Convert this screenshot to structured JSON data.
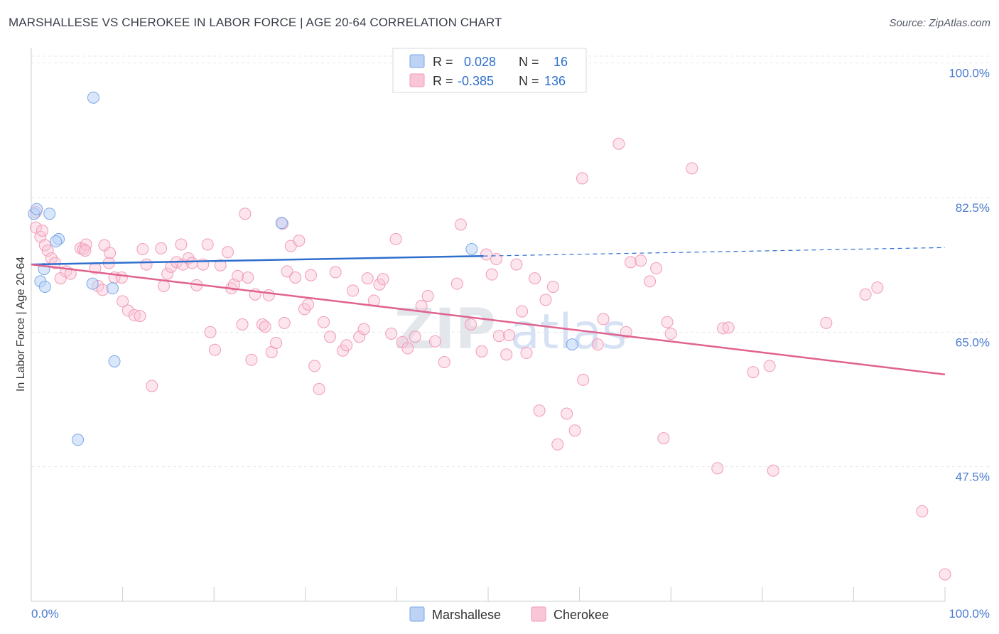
{
  "header": {
    "title": "MARSHALLESE VS CHEROKEE IN LABOR FORCE | AGE 20-64 CORRELATION CHART",
    "source": "Source: ZipAtlas.com"
  },
  "watermark": {
    "zip": "ZIP",
    "atlas": "atlas"
  },
  "legend": {
    "rows": [
      {
        "r_label": "R =",
        "r_value": "0.028",
        "n_label": "N =",
        "n_value": "16"
      },
      {
        "r_label": "R =",
        "r_value": "-0.385",
        "n_label": "N =",
        "n_value": "136"
      }
    ]
  },
  "bottom_legend": {
    "items": [
      "Marshallese",
      "Cherokee"
    ]
  },
  "chart_data": {
    "type": "scatter",
    "title": "MARSHALLESE VS CHEROKEE IN LABOR FORCE | AGE 20-64 CORRELATION CHART",
    "xlabel": "",
    "ylabel": "In Labor Force | Age 20-64",
    "xlim": [
      0,
      100
    ],
    "ylim": [
      30,
      102
    ],
    "x_tick_labels": [
      "0.0%",
      "100.0%"
    ],
    "y_ticks": [
      47.5,
      65.0,
      82.5,
      100.0
    ],
    "y_tick_labels": [
      "47.5%",
      "65.0%",
      "82.5%",
      "100.0%"
    ],
    "grid": true,
    "colors": {
      "marshallese": "#7aa7e8",
      "cherokee": "#f19ab8",
      "marshallese_line": "#2e6fce",
      "cherokee_line": "#e0628f",
      "accent_text": "#4a7bd0"
    },
    "series": [
      {
        "name": "Marshallese",
        "trend": {
          "x": [
            0,
            49.5
          ],
          "y": [
            73.8,
            74.9
          ],
          "dashed_to": [
            100,
            76.0
          ]
        },
        "points": [
          [
            0.3,
            80.4
          ],
          [
            0.6,
            81.0
          ],
          [
            2.0,
            80.4
          ],
          [
            1.0,
            71.6
          ],
          [
            1.5,
            70.9
          ],
          [
            1.4,
            73.2
          ],
          [
            3.0,
            77.1
          ],
          [
            2.7,
            76.8
          ],
          [
            6.8,
            95.5
          ],
          [
            6.7,
            71.3
          ],
          [
            8.9,
            70.7
          ],
          [
            9.1,
            61.2
          ],
          [
            5.1,
            51.0
          ],
          [
            27.4,
            79.2
          ],
          [
            48.2,
            75.8
          ],
          [
            59.2,
            63.4
          ]
        ]
      },
      {
        "name": "Cherokee",
        "trend": {
          "x": [
            0,
            100
          ],
          "y": [
            73.8,
            59.5
          ]
        },
        "points": [
          [
            0.5,
            78.6
          ],
          [
            1.0,
            77.4
          ],
          [
            1.5,
            76.3
          ],
          [
            1.8,
            75.6
          ],
          [
            2.2,
            74.6
          ],
          [
            2.6,
            74.0
          ],
          [
            3.2,
            72.0
          ],
          [
            3.8,
            72.9
          ],
          [
            4.3,
            72.6
          ],
          [
            5.4,
            75.9
          ],
          [
            5.7,
            75.8
          ],
          [
            6.0,
            76.4
          ],
          [
            7.0,
            73.3
          ],
          [
            7.3,
            71.0
          ],
          [
            7.8,
            70.5
          ],
          [
            8.0,
            76.3
          ],
          [
            8.5,
            74.0
          ],
          [
            8.6,
            75.3
          ],
          [
            9.1,
            72.1
          ],
          [
            9.9,
            72.1
          ],
          [
            10.0,
            69.0
          ],
          [
            10.6,
            67.8
          ],
          [
            11.3,
            67.2
          ],
          [
            11.9,
            67.1
          ],
          [
            12.2,
            75.8
          ],
          [
            12.6,
            73.8
          ],
          [
            13.2,
            58.0
          ],
          [
            14.2,
            75.9
          ],
          [
            14.5,
            71.0
          ],
          [
            14.9,
            72.6
          ],
          [
            15.3,
            73.5
          ],
          [
            15.9,
            74.1
          ],
          [
            16.4,
            76.4
          ],
          [
            16.6,
            73.8
          ],
          [
            17.2,
            74.6
          ],
          [
            17.6,
            74.0
          ],
          [
            18.1,
            71.1
          ],
          [
            18.8,
            73.8
          ],
          [
            19.3,
            76.4
          ],
          [
            19.6,
            65.0
          ],
          [
            20.1,
            62.7
          ],
          [
            20.7,
            73.7
          ],
          [
            21.5,
            75.4
          ],
          [
            21.9,
            70.7
          ],
          [
            22.2,
            71.2
          ],
          [
            22.6,
            72.3
          ],
          [
            23.1,
            66.0
          ],
          [
            23.4,
            80.4
          ],
          [
            23.7,
            72.1
          ],
          [
            24.1,
            61.4
          ],
          [
            24.5,
            69.9
          ],
          [
            25.3,
            66.0
          ],
          [
            25.6,
            65.7
          ],
          [
            26.0,
            69.8
          ],
          [
            26.3,
            62.4
          ],
          [
            26.8,
            63.6
          ],
          [
            27.5,
            79.1
          ],
          [
            27.7,
            66.2
          ],
          [
            28.0,
            72.9
          ],
          [
            28.4,
            76.2
          ],
          [
            28.9,
            72.1
          ],
          [
            29.3,
            76.9
          ],
          [
            29.9,
            68.0
          ],
          [
            30.3,
            68.6
          ],
          [
            30.6,
            72.4
          ],
          [
            31.0,
            60.6
          ],
          [
            31.5,
            57.6
          ],
          [
            32.0,
            66.3
          ],
          [
            32.7,
            64.4
          ],
          [
            33.3,
            72.8
          ],
          [
            34.1,
            62.6
          ],
          [
            34.5,
            63.3
          ],
          [
            35.2,
            70.4
          ],
          [
            35.9,
            64.4
          ],
          [
            36.4,
            65.4
          ],
          [
            36.8,
            72.0
          ],
          [
            37.5,
            69.1
          ],
          [
            38.1,
            71.2
          ],
          [
            38.5,
            71.9
          ],
          [
            39.4,
            64.8
          ],
          [
            39.9,
            77.1
          ],
          [
            40.6,
            63.7
          ],
          [
            41.2,
            62.9
          ],
          [
            42.0,
            64.4
          ],
          [
            42.7,
            68.4
          ],
          [
            43.4,
            69.7
          ],
          [
            44.2,
            63.8
          ],
          [
            45.2,
            61.1
          ],
          [
            46.6,
            71.3
          ],
          [
            47.0,
            79.0
          ],
          [
            48.1,
            66.0
          ],
          [
            49.3,
            62.5
          ],
          [
            49.8,
            75.1
          ],
          [
            50.4,
            72.5
          ],
          [
            50.9,
            74.5
          ],
          [
            51.2,
            64.5
          ],
          [
            52.0,
            62.1
          ],
          [
            52.3,
            64.6
          ],
          [
            53.1,
            73.8
          ],
          [
            53.7,
            67.7
          ],
          [
            54.2,
            62.3
          ],
          [
            55.1,
            72.0
          ],
          [
            55.6,
            54.8
          ],
          [
            56.3,
            69.2
          ],
          [
            57.1,
            70.9
          ],
          [
            57.6,
            50.4
          ],
          [
            58.6,
            54.4
          ],
          [
            59.5,
            52.2
          ],
          [
            60.3,
            85.0
          ],
          [
            60.4,
            58.8
          ],
          [
            62.0,
            63.4
          ],
          [
            62.6,
            66.7
          ],
          [
            64.3,
            89.5
          ],
          [
            65.1,
            65.0
          ],
          [
            65.6,
            74.1
          ],
          [
            66.7,
            74.3
          ],
          [
            67.7,
            71.6
          ],
          [
            68.4,
            73.3
          ],
          [
            69.2,
            51.2
          ],
          [
            69.6,
            66.3
          ],
          [
            70.0,
            64.8
          ],
          [
            72.3,
            86.3
          ],
          [
            75.1,
            47.3
          ],
          [
            75.7,
            65.5
          ],
          [
            76.3,
            65.6
          ],
          [
            79.0,
            59.8
          ],
          [
            80.8,
            60.6
          ],
          [
            81.2,
            47.0
          ],
          [
            87.0,
            66.2
          ],
          [
            91.3,
            69.9
          ],
          [
            92.6,
            70.8
          ],
          [
            97.5,
            41.7
          ],
          [
            100.0,
            33.5
          ],
          [
            0.5,
            80.6
          ],
          [
            1.2,
            78.2
          ],
          [
            5.9,
            75.6
          ]
        ]
      }
    ]
  }
}
